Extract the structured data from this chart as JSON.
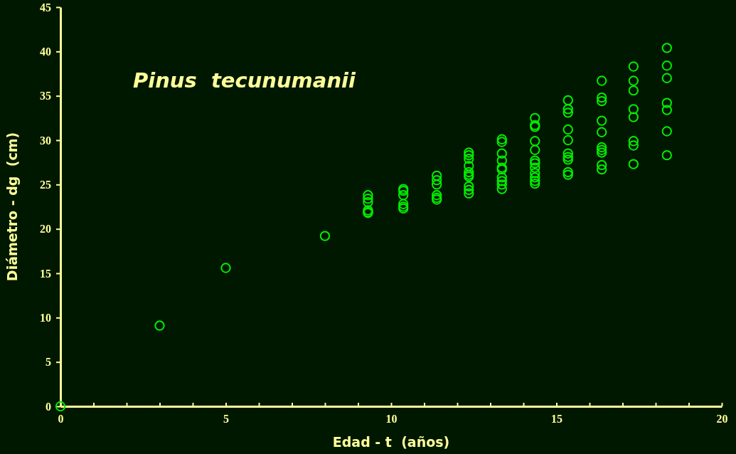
{
  "chart_data": {
    "type": "scatter",
    "title": "Pinus  tecunumanii",
    "xlabel": "Edad - t  (años)",
    "ylabel": "Diámetro - dg  (cm)",
    "x": [
      0,
      3,
      5,
      8,
      9.3,
      9.3,
      9.3,
      9.3,
      9.3,
      9.3,
      10.37,
      10.37,
      10.37,
      10.37,
      10.37,
      10.37,
      11.38,
      11.38,
      11.38,
      11.38,
      11.38,
      11.38,
      12.35,
      12.35,
      12.35,
      12.35,
      12.35,
      12.35,
      12.35,
      12.35,
      12.35,
      12.35,
      13.35,
      13.35,
      13.35,
      13.35,
      13.35,
      13.35,
      13.35,
      13.35,
      13.35,
      13.35,
      14.35,
      14.35,
      14.35,
      14.35,
      14.35,
      14.35,
      14.35,
      14.35,
      14.35,
      14.35,
      14.35,
      14.35,
      15.35,
      15.35,
      15.35,
      15.35,
      15.35,
      15.35,
      15.35,
      15.35,
      15.35,
      15.35,
      16.37,
      16.37,
      16.37,
      16.37,
      16.37,
      16.37,
      16.37,
      16.37,
      16.37,
      16.37,
      17.33,
      17.33,
      17.33,
      17.33,
      17.33,
      17.33,
      17.33,
      17.33,
      18.34,
      18.34,
      18.34,
      18.34,
      18.34,
      18.34,
      18.34
    ],
    "values": [
      0,
      9.1,
      15.6,
      19.2,
      23.8,
      23.4,
      23.0,
      22.1,
      21.9,
      21.8,
      24.5,
      24.3,
      23.8,
      22.8,
      22.5,
      22.3,
      26.0,
      25.5,
      25.0,
      23.8,
      23.5,
      23.3,
      28.6,
      28.3,
      27.9,
      27.1,
      26.4,
      26.1,
      25.9,
      24.8,
      24.4,
      24.0,
      30.1,
      29.8,
      28.5,
      27.7,
      26.9,
      26.7,
      25.8,
      25.4,
      25.0,
      24.5,
      32.5,
      31.7,
      31.5,
      29.9,
      28.9,
      27.7,
      27.4,
      26.9,
      26.3,
      25.8,
      25.4,
      25.1,
      34.5,
      33.5,
      33.1,
      31.2,
      30.0,
      28.5,
      28.1,
      27.8,
      26.4,
      26.1,
      36.7,
      34.8,
      34.4,
      32.2,
      30.9,
      29.2,
      28.9,
      28.6,
      27.2,
      26.7,
      38.3,
      36.7,
      35.6,
      33.5,
      32.6,
      29.9,
      29.4,
      27.3,
      40.4,
      38.4,
      37.0,
      34.2,
      33.4,
      31.0,
      28.3
    ],
    "color": "#00ee00",
    "marker": "circle",
    "xlim": [
      0,
      20
    ],
    "xticks": [
      0,
      {
        "value": 1,
        "label": null
      },
      {
        "value": 2,
        "label": null
      },
      {
        "value": 3,
        "label": null
      },
      {
        "value": 4,
        "label": null
      },
      5,
      {
        "value": 6,
        "label": null
      },
      {
        "value": 7,
        "label": null
      },
      {
        "value": 8,
        "label": null
      },
      {
        "value": 9,
        "label": null
      },
      10,
      {
        "value": 11,
        "label": null
      },
      {
        "value": 12,
        "label": null
      },
      {
        "value": 13,
        "label": null
      },
      {
        "value": 14,
        "label": null
      },
      15,
      {
        "value": 16,
        "label": null
      },
      {
        "value": 17,
        "label": null
      },
      {
        "value": 18,
        "label": null
      },
      {
        "value": 19,
        "label": null
      },
      20
    ],
    "ylim": [
      0,
      45
    ],
    "yticks": [
      0,
      5,
      10,
      15,
      20,
      25,
      30,
      35,
      40,
      45
    ]
  }
}
